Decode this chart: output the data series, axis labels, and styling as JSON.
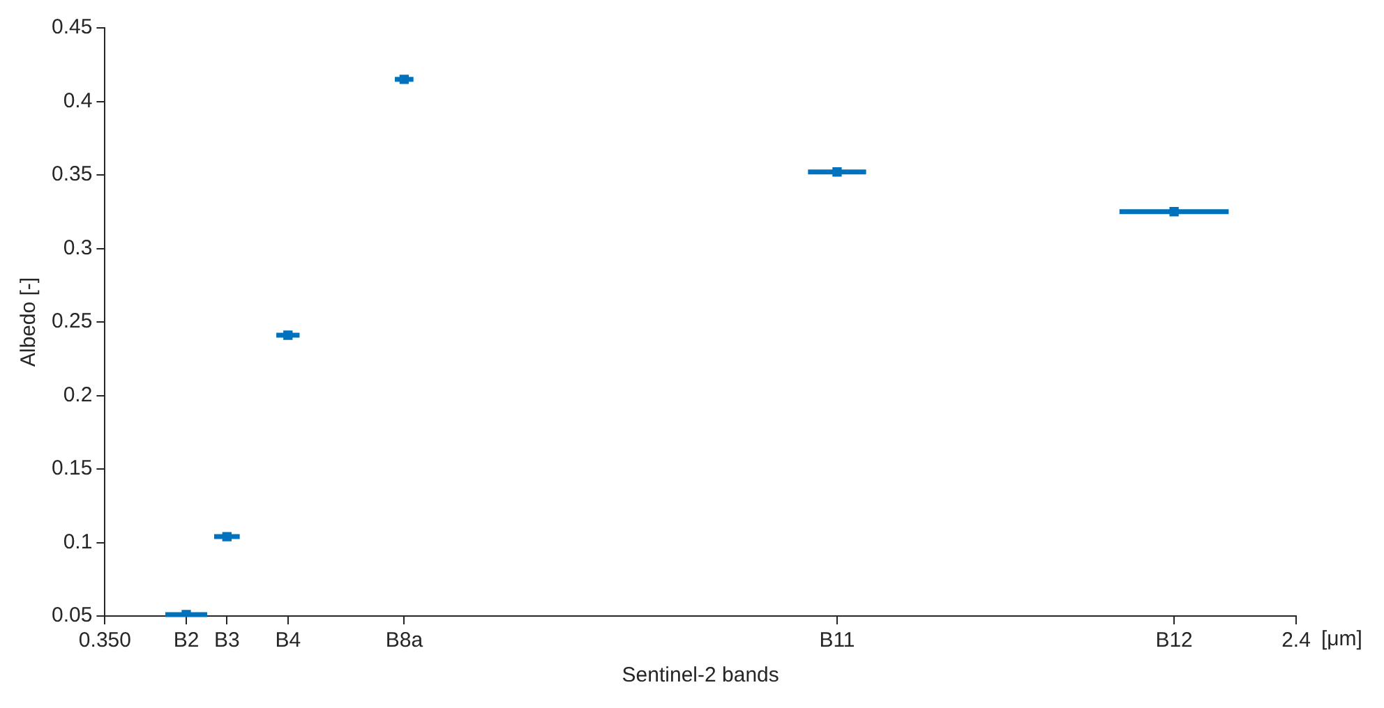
{
  "chart_data": {
    "type": "scatter",
    "xlabel": "Sentinel-2 bands",
    "ylabel": "Albedo [-]",
    "x": [
      0.49,
      0.56,
      0.665,
      0.865,
      1.61,
      2.19
    ],
    "series": [
      {
        "color": "#0072bd",
        "values": [
          0.051,
          0.104,
          0.241,
          0.415,
          0.352,
          0.325
        ],
        "xerrors": [
          0.036,
          0.022,
          0.02,
          0.016,
          0.05,
          0.094
        ]
      }
    ],
    "xlim": [
      0.35,
      2.4
    ],
    "xticks": [
      {
        "value": 0.35,
        "label": "0.350"
      },
      {
        "value": 0.49,
        "label": "B2"
      },
      {
        "value": 0.56,
        "label": "B3"
      },
      {
        "value": 0.665,
        "label": "B4"
      },
      {
        "value": 0.865,
        "label": "B8a"
      },
      {
        "value": 1.61,
        "label": "B11"
      },
      {
        "value": 2.19,
        "label": "B12"
      },
      2.4
    ],
    "ylim": [
      0.05,
      0.45
    ],
    "yticks": [
      0.05,
      0.1,
      0.15,
      0.2,
      0.25,
      0.3,
      0.35,
      0.4,
      0.45
    ],
    "annotations": [
      "[μm]"
    ],
    "marker": "square",
    "grid": false,
    "legend": false
  }
}
